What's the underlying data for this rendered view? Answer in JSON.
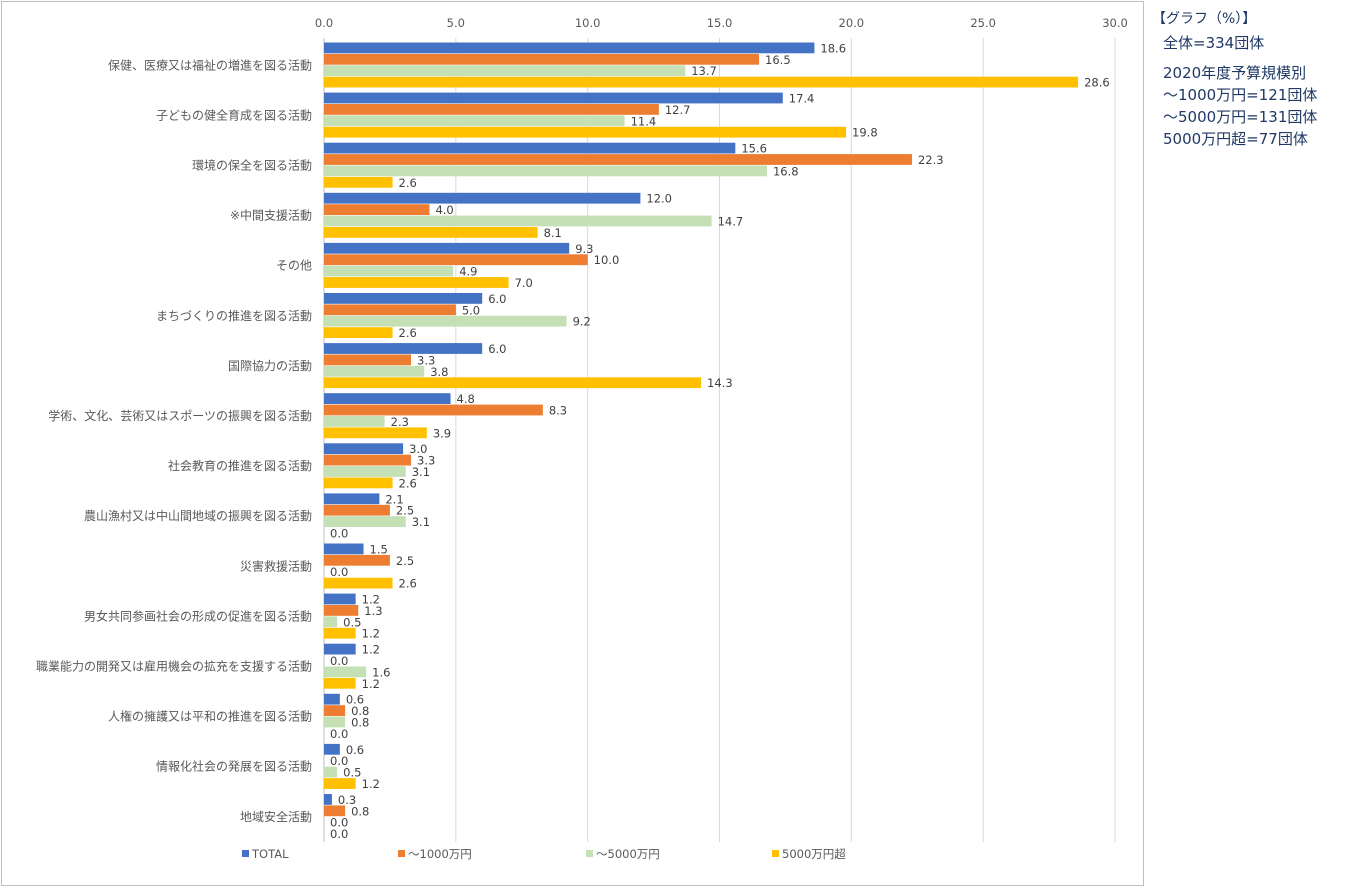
{
  "chart_data": {
    "type": "bar",
    "orientation": "horizontal",
    "xlim": [
      0,
      30
    ],
    "x_ticks": [
      "0.0",
      "5.0",
      "10.0",
      "15.0",
      "20.0",
      "25.0",
      "30.0"
    ],
    "grid": "vertical",
    "legend_position": "bottom",
    "categories": [
      "保健、医療又は福祉の増進を図る活動",
      "子どもの健全育成を図る活動",
      "環境の保全を図る活動",
      "※中間支援活動",
      "その他",
      "まちづくりの推進を図る活動",
      "国際協力の活動",
      "学術、文化、芸術又はスポーツの振興を図る活動",
      "社会教育の推進を図る活動",
      "農山漁村又は中山間地域の振興を図る活動",
      "災害救援活動",
      "男女共同参画社会の形成の促進を図る活動",
      "職業能力の開発又は雇用機会の拡充を支援する活動",
      "人権の擁護又は平和の推進を図る活動",
      "情報化社会の発展を図る活動",
      "地域安全活動"
    ],
    "series": [
      {
        "name": "TOTAL",
        "color": "#4472c4",
        "values": [
          18.6,
          17.4,
          15.6,
          12.0,
          9.3,
          6.0,
          6.0,
          4.8,
          3.0,
          2.1,
          1.5,
          1.2,
          1.2,
          0.6,
          0.6,
          0.3
        ]
      },
      {
        "name": "～1000万円",
        "color": "#ed7d31",
        "values": [
          16.5,
          12.7,
          22.3,
          4.0,
          10.0,
          5.0,
          3.3,
          8.3,
          3.3,
          2.5,
          2.5,
          1.3,
          0.0,
          0.8,
          0.0,
          0.8
        ]
      },
      {
        "name": "～5000万円",
        "color": "#c5e0b4",
        "values": [
          13.7,
          11.4,
          16.8,
          14.7,
          4.9,
          9.2,
          3.8,
          2.3,
          3.1,
          3.1,
          0.0,
          0.5,
          1.6,
          0.8,
          0.5,
          0.0
        ]
      },
      {
        "name": "5000万円超",
        "color": "#ffc000",
        "values": [
          28.6,
          19.8,
          2.6,
          8.1,
          7.0,
          2.6,
          14.3,
          3.9,
          2.6,
          0.0,
          2.6,
          1.2,
          1.2,
          0.0,
          1.2,
          0.0
        ]
      }
    ]
  },
  "side_note": {
    "title": "【グラフ（%）】",
    "total_line": "全体=334団体",
    "breakdown_title": "2020年度予算規模別",
    "lines": [
      "～1000万円=121団体",
      "～5000万円=131団体",
      "5000万円超=77団体"
    ],
    "color": "#1f3864"
  }
}
